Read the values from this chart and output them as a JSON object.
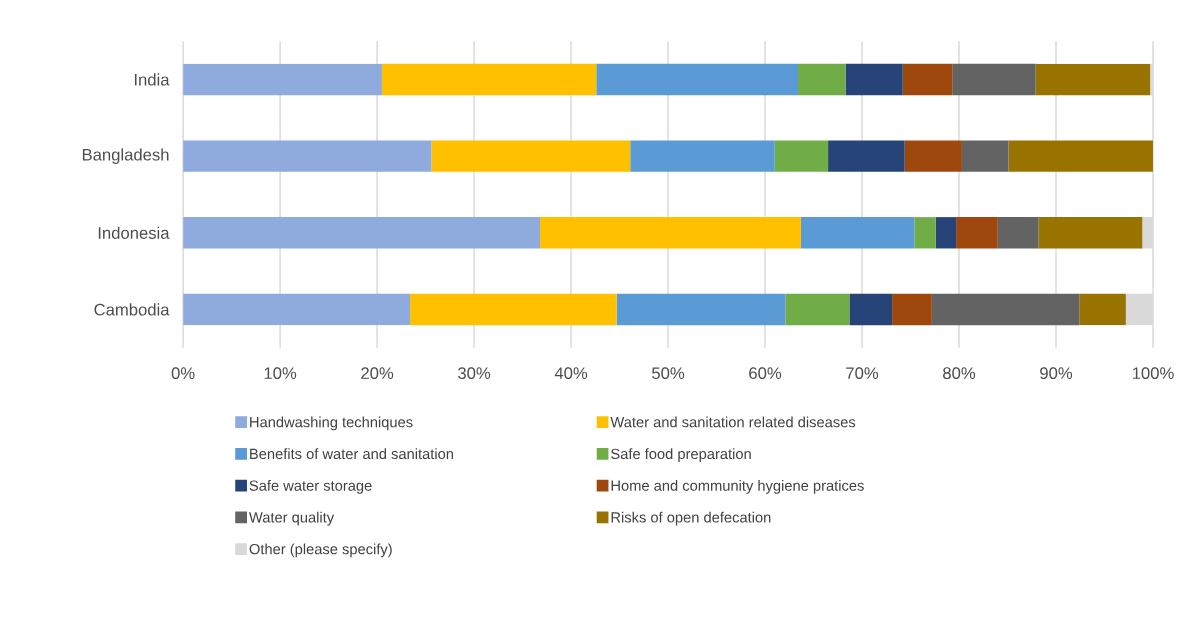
{
  "chart_data": {
    "type": "bar",
    "orientation": "horizontal",
    "stacked": true,
    "categories": [
      "India",
      "Bangladesh",
      "Indonesia",
      "Cambodia"
    ],
    "series": [
      {
        "name": "Handwashing techniques",
        "color": "#8faadc",
        "values": [
          20.5,
          25.6,
          36.8,
          23.4
        ]
      },
      {
        "name": "Water and sanitation related diseases",
        "color": "#ffc000",
        "values": [
          22.1,
          20.5,
          26.9,
          21.3
        ]
      },
      {
        "name": "Benefits of water and sanitation",
        "color": "#5b9bd5",
        "values": [
          20.8,
          14.9,
          11.7,
          17.4
        ]
      },
      {
        "name": "Safe food preparation",
        "color": "#70ad47",
        "values": [
          4.9,
          5.5,
          2.2,
          6.6
        ]
      },
      {
        "name": "Safe water storage",
        "color": "#264478",
        "values": [
          5.9,
          7.9,
          2.1,
          4.4
        ]
      },
      {
        "name": "Home and community hygiene pratices",
        "color": "#9e480e",
        "values": [
          5.1,
          5.9,
          4.3,
          4.1
        ]
      },
      {
        "name": "Water quality",
        "color": "#636363",
        "values": [
          8.6,
          4.8,
          4.2,
          15.2
        ]
      },
      {
        "name": "Risks of open defecation",
        "color": "#997300",
        "values": [
          11.8,
          14.9,
          10.7,
          4.8
        ]
      },
      {
        "name": "Other (please specify)",
        "color": "#d9d9d9",
        "values": [
          0.3,
          0,
          1.1,
          2.8
        ]
      }
    ],
    "xlim": [
      0,
      100
    ],
    "xticks": [
      {
        "value": 0,
        "label": "0%"
      },
      {
        "value": 10,
        "label": "10%"
      },
      {
        "value": 20,
        "label": "20%"
      },
      {
        "value": 30,
        "label": "30%"
      },
      {
        "value": 40,
        "label": "40%"
      },
      {
        "value": 50,
        "label": "50%"
      },
      {
        "value": 60,
        "label": "60%"
      },
      {
        "value": 70,
        "label": "70%"
      },
      {
        "value": 80,
        "label": "80%"
      },
      {
        "value": 90,
        "label": "90%"
      },
      {
        "value": 100,
        "label": "100%"
      }
    ],
    "grid": "x",
    "legend": "bottom"
  }
}
